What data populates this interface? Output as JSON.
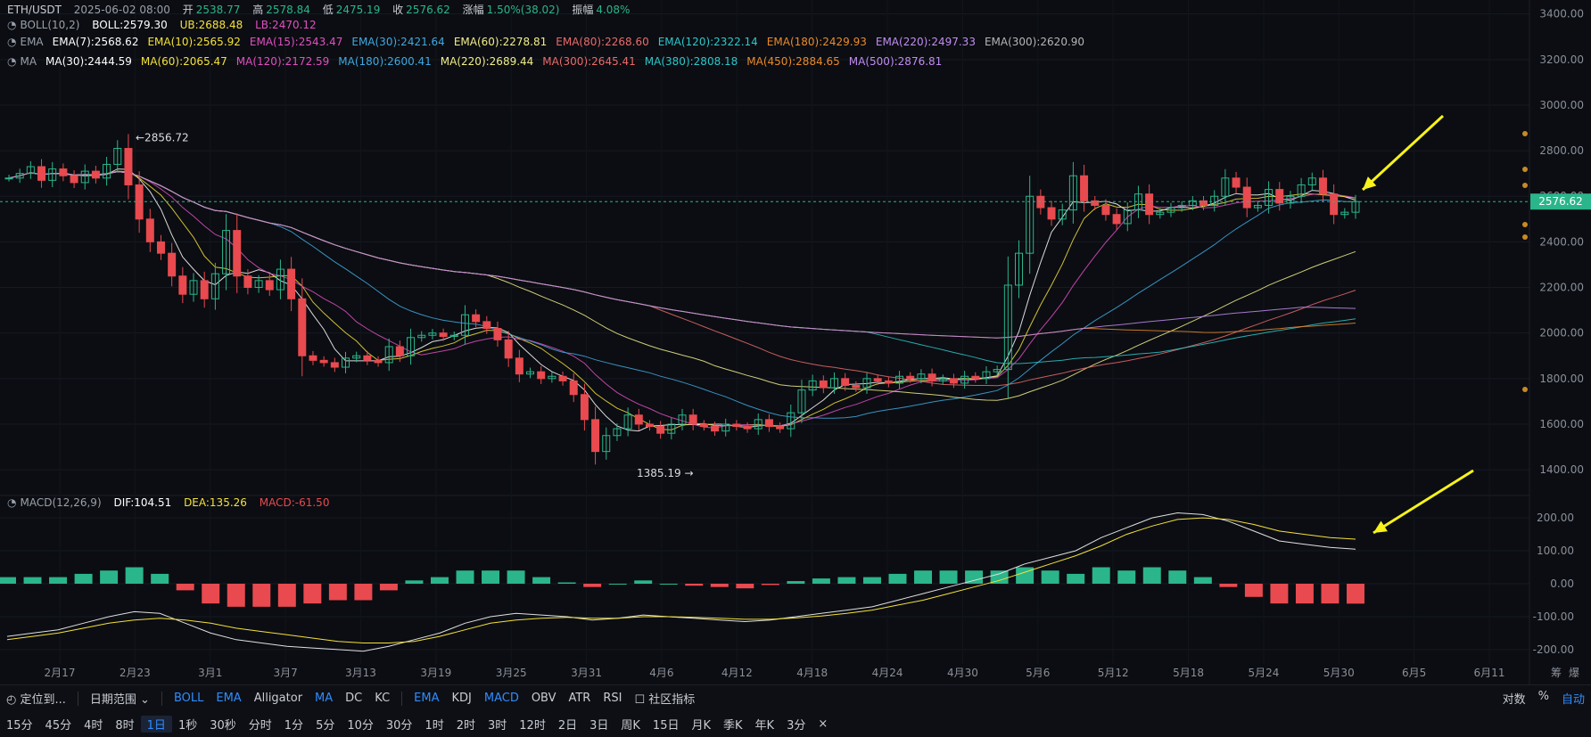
{
  "header": {
    "symbol": "ETH/USDT",
    "datetime": "2025-06-02 08:00",
    "open_label": "开",
    "open": "2538.77",
    "high_label": "高",
    "high": "2578.84",
    "low_label": "低",
    "low": "2475.19",
    "close_label": "收",
    "close": "2576.62",
    "chg_label": "涨幅",
    "chg": "1.50%(38.02)",
    "amp_label": "振幅",
    "amp": "4.08%"
  },
  "boll": {
    "label": "BOLL(10,2)",
    "mid": "BOLL:2579.30",
    "ub": "UB:2688.48",
    "lb": "LB:2470.12"
  },
  "ema": {
    "label": "EMA",
    "items": [
      {
        "text": "EMA(7):2568.62",
        "color": "#ffffff"
      },
      {
        "text": "EMA(10):2565.92",
        "color": "#f5e13a"
      },
      {
        "text": "EMA(15):2543.47",
        "color": "#e14fc0"
      },
      {
        "text": "EMA(30):2421.64",
        "color": "#3fa9e0"
      },
      {
        "text": "EMA(60):2278.81",
        "color": "#f2ee8a"
      },
      {
        "text": "EMA(80):2268.60",
        "color": "#e96b6b"
      },
      {
        "text": "EMA(120):2322.14",
        "color": "#2ec7c9"
      },
      {
        "text": "EMA(180):2429.93",
        "color": "#e98a2b"
      },
      {
        "text": "EMA(220):2497.33",
        "color": "#c28cf0"
      },
      {
        "text": "EMA(300):2620.90",
        "color": "#b5b5b5"
      }
    ]
  },
  "ma": {
    "label": "MA",
    "items": [
      {
        "text": "MA(30):2444.59",
        "color": "#ffffff"
      },
      {
        "text": "MA(60):2065.47",
        "color": "#f5e13a"
      },
      {
        "text": "MA(120):2172.59",
        "color": "#e14fc0"
      },
      {
        "text": "MA(180):2600.41",
        "color": "#3fa9e0"
      },
      {
        "text": "MA(220):2689.44",
        "color": "#f2ee8a"
      },
      {
        "text": "MA(300):2645.41",
        "color": "#e96b6b"
      },
      {
        "text": "MA(380):2808.18",
        "color": "#2ec7c9"
      },
      {
        "text": "MA(450):2884.65",
        "color": "#e98a2b"
      },
      {
        "text": "MA(500):2876.81",
        "color": "#c28cf0"
      }
    ]
  },
  "macd": {
    "label": "MACD(12,26,9)",
    "dif": "DIF:104.51",
    "dea": "DEA:135.26",
    "macd": "MACD:-61.50"
  },
  "colors": {
    "up": "#2bb58a",
    "down": "#e84a4f",
    "bg": "#0b0d12",
    "accent": "#2f8cff",
    "arrow": "#f7f21a"
  },
  "annotations": {
    "high_mark": "2856.72",
    "low_mark": "1385.19",
    "last_price": "2576.62"
  },
  "chart_data": {
    "type": "candlestick",
    "price_axis": {
      "ticks": [
        "3400.00",
        "3200.00",
        "3000.00",
        "2800.00",
        "2600.00",
        "2400.00",
        "2200.00",
        "2000.00",
        "1800.00",
        "1600.00",
        "1400.00"
      ],
      "range": [
        1330,
        3430
      ]
    },
    "macd_axis": {
      "ticks": [
        "200.00",
        "100.00",
        "0.00",
        "-100.00",
        "-200.00"
      ],
      "range": [
        -230,
        230
      ]
    },
    "date_labels": [
      "2月17",
      "2月23",
      "3月1",
      "3月7",
      "3月13",
      "3月19",
      "3月25",
      "3月31",
      "4月6",
      "4月12",
      "4月18",
      "4月24",
      "4月30",
      "5月6",
      "5月12",
      "5月18",
      "5月24",
      "5月30",
      "6月5",
      "6月11"
    ],
    "close": [
      2680,
      2700,
      2730,
      2670,
      2720,
      2690,
      2660,
      2710,
      2680,
      2740,
      2810,
      2650,
      2500,
      2400,
      2350,
      2250,
      2170,
      2230,
      2150,
      2260,
      2450,
      2250,
      2200,
      2230,
      2190,
      2280,
      2150,
      1900,
      1880,
      1870,
      1850,
      1890,
      1900,
      1880,
      1870,
      1940,
      1900,
      1980,
      1990,
      2000,
      1985,
      1990,
      2080,
      2050,
      2020,
      1970,
      1890,
      1820,
      1830,
      1800,
      1810,
      1790,
      1730,
      1620,
      1480,
      1550,
      1580,
      1640,
      1600,
      1590,
      1560,
      1600,
      1640,
      1600,
      1590,
      1570,
      1600,
      1590,
      1580,
      1620,
      1590,
      1580,
      1650,
      1750,
      1790,
      1760,
      1800,
      1770,
      1760,
      1800,
      1790,
      1780,
      1810,
      1800,
      1820,
      1790,
      1800,
      1780,
      1810,
      1800,
      1830,
      1840,
      2210,
      2350,
      2600,
      2550,
      2500,
      2540,
      2690,
      2580,
      2560,
      2520,
      2480,
      2540,
      2610,
      2520,
      2530,
      2550,
      2560,
      2580,
      2560,
      2600,
      2680,
      2640,
      2550,
      2560,
      2630,
      2570,
      2600,
      2650,
      2680,
      2610,
      2520,
      2530,
      2576.62
    ],
    "macd_dif": [
      -160,
      -150,
      -140,
      -120,
      -100,
      -85,
      -90,
      -120,
      -150,
      -170,
      -180,
      -190,
      -195,
      -200,
      -205,
      -190,
      -170,
      -150,
      -120,
      -100,
      -90,
      -95,
      -100,
      -110,
      -105,
      -95,
      -100,
      -105,
      -110,
      -115,
      -110,
      -100,
      -90,
      -80,
      -70,
      -50,
      -30,
      -10,
      10,
      30,
      60,
      80,
      100,
      140,
      170,
      200,
      215,
      210,
      190,
      160,
      130,
      120,
      110,
      105
    ],
    "macd_dea": [
      -170,
      -160,
      -150,
      -135,
      -120,
      -110,
      -105,
      -110,
      -120,
      -135,
      -145,
      -155,
      -165,
      -175,
      -180,
      -180,
      -175,
      -160,
      -140,
      -120,
      -110,
      -105,
      -102,
      -105,
      -105,
      -100,
      -100,
      -102,
      -105,
      -108,
      -108,
      -104,
      -98,
      -90,
      -80,
      -65,
      -50,
      -30,
      -10,
      10,
      35,
      60,
      85,
      115,
      150,
      175,
      195,
      200,
      195,
      180,
      160,
      150,
      140,
      135.26
    ]
  },
  "toolbar1": {
    "locate": "定位到...",
    "range": "日期范围",
    "indicators_main": [
      "BOLL",
      "EMA",
      "Alligator",
      "MA",
      "DC",
      "KC"
    ],
    "indicators_sub": [
      "EMA",
      "KDJ",
      "MACD",
      "OBV",
      "ATR",
      "RSI"
    ],
    "community": "社区指标",
    "right": [
      "对数",
      "%",
      "自动"
    ]
  },
  "toolbar2": {
    "periods": [
      "15分",
      "45分",
      "4时",
      "8时",
      "1日",
      "1秒",
      "30秒",
      "分时",
      "1分",
      "5分",
      "10分",
      "30分",
      "1时",
      "2时",
      "3时",
      "12时",
      "2日",
      "3日",
      "周K",
      "15日",
      "月K",
      "季K",
      "年K",
      "3分"
    ],
    "active": "1日",
    "close_icon": "×"
  },
  "axis_corner": [
    "筹",
    "爆"
  ]
}
